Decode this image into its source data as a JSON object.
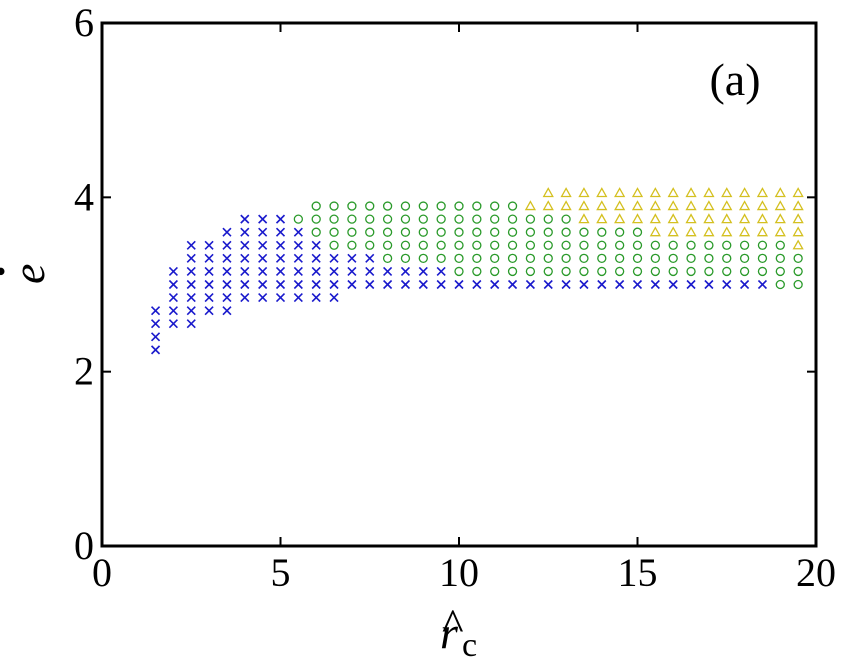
{
  "chart_data": {
    "type": "scatter",
    "panel_label": "(a)",
    "xlabel": {
      "main": "r",
      "hat": "^",
      "sub": "c"
    },
    "ylabel": {
      "main": "e",
      "dot": "·"
    },
    "xlim": [
      0,
      20
    ],
    "ylim": [
      0,
      6
    ],
    "xticks": [
      "0",
      "5",
      "10",
      "15",
      "20"
    ],
    "yticks": [
      "0",
      "2",
      "4",
      "6"
    ],
    "grid": false,
    "colors": {
      "x": "#1a1acc",
      "circle": "#2a9a2a",
      "triangle": "#d4c020"
    },
    "series": [
      {
        "marker": "x",
        "columns": [
          {
            "x": 1.5,
            "ymin": 2.25,
            "ymax": 2.7
          },
          {
            "x": 2.0,
            "ymin": 2.55,
            "ymax": 3.15
          },
          {
            "x": 2.5,
            "ymin": 2.55,
            "ymax": 3.45
          },
          {
            "x": 3.0,
            "ymin": 2.7,
            "ymax": 3.45
          },
          {
            "x": 3.5,
            "ymin": 2.7,
            "ymax": 3.6
          },
          {
            "x": 4.0,
            "ymin": 2.85,
            "ymax": 3.75
          },
          {
            "x": 4.5,
            "ymin": 2.85,
            "ymax": 3.75
          },
          {
            "x": 5.0,
            "ymin": 2.85,
            "ymax": 3.75
          },
          {
            "x": 5.5,
            "ymin": 2.85,
            "ymax": 3.6
          },
          {
            "x": 6.0,
            "ymin": 2.85,
            "ymax": 3.45
          },
          {
            "x": 6.5,
            "ymin": 2.85,
            "ymax": 3.3
          },
          {
            "x": 7.0,
            "ymin": 3.0,
            "ymax": 3.3
          },
          {
            "x": 7.5,
            "ymin": 3.0,
            "ymax": 3.3
          },
          {
            "x": 8.0,
            "ymin": 3.0,
            "ymax": 3.15
          },
          {
            "x": 8.5,
            "ymin": 3.0,
            "ymax": 3.15
          },
          {
            "x": 9.0,
            "ymin": 3.0,
            "ymax": 3.15
          },
          {
            "x": 9.5,
            "ymin": 3.0,
            "ymax": 3.15
          },
          {
            "x": 10.0,
            "ymin": 3.0,
            "ymax": 3.0
          },
          {
            "x": 10.5,
            "ymin": 3.0,
            "ymax": 3.0
          },
          {
            "x": 11.0,
            "ymin": 3.0,
            "ymax": 3.0
          },
          {
            "x": 11.5,
            "ymin": 3.0,
            "ymax": 3.0
          },
          {
            "x": 12.0,
            "ymin": 3.0,
            "ymax": 3.0
          },
          {
            "x": 12.5,
            "ymin": 3.0,
            "ymax": 3.0
          },
          {
            "x": 13.0,
            "ymin": 3.0,
            "ymax": 3.0
          },
          {
            "x": 13.5,
            "ymin": 3.0,
            "ymax": 3.0
          },
          {
            "x": 14.0,
            "ymin": 3.0,
            "ymax": 3.0
          },
          {
            "x": 14.5,
            "ymin": 3.0,
            "ymax": 3.0
          },
          {
            "x": 15.0,
            "ymin": 3.0,
            "ymax": 3.0
          },
          {
            "x": 15.5,
            "ymin": 3.0,
            "ymax": 3.0
          },
          {
            "x": 16.0,
            "ymin": 3.0,
            "ymax": 3.0
          },
          {
            "x": 16.5,
            "ymin": 3.0,
            "ymax": 3.0
          },
          {
            "x": 17.0,
            "ymin": 3.0,
            "ymax": 3.0
          },
          {
            "x": 17.5,
            "ymin": 3.0,
            "ymax": 3.0
          },
          {
            "x": 18.0,
            "ymin": 3.0,
            "ymax": 3.0
          },
          {
            "x": 18.5,
            "ymin": 3.0,
            "ymax": 3.0
          }
        ]
      },
      {
        "marker": "circle",
        "columns": [
          {
            "x": 5.5,
            "ymin": 3.75,
            "ymax": 3.75
          },
          {
            "x": 6.0,
            "ymin": 3.6,
            "ymax": 3.9
          },
          {
            "x": 6.5,
            "ymin": 3.45,
            "ymax": 3.9
          },
          {
            "x": 7.0,
            "ymin": 3.45,
            "ymax": 3.9
          },
          {
            "x": 7.5,
            "ymin": 3.45,
            "ymax": 3.9
          },
          {
            "x": 8.0,
            "ymin": 3.3,
            "ymax": 3.9
          },
          {
            "x": 8.5,
            "ymin": 3.3,
            "ymax": 3.9
          },
          {
            "x": 9.0,
            "ymin": 3.3,
            "ymax": 3.9
          },
          {
            "x": 9.5,
            "ymin": 3.3,
            "ymax": 3.9
          },
          {
            "x": 10.0,
            "ymin": 3.15,
            "ymax": 3.9
          },
          {
            "x": 10.5,
            "ymin": 3.15,
            "ymax": 3.9
          },
          {
            "x": 11.0,
            "ymin": 3.15,
            "ymax": 3.9
          },
          {
            "x": 11.5,
            "ymin": 3.15,
            "ymax": 3.9
          },
          {
            "x": 12.0,
            "ymin": 3.15,
            "ymax": 3.75
          },
          {
            "x": 12.5,
            "ymin": 3.15,
            "ymax": 3.75
          },
          {
            "x": 13.0,
            "ymin": 3.15,
            "ymax": 3.75
          },
          {
            "x": 13.5,
            "ymin": 3.15,
            "ymax": 3.6
          },
          {
            "x": 14.0,
            "ymin": 3.15,
            "ymax": 3.6
          },
          {
            "x": 14.5,
            "ymin": 3.15,
            "ymax": 3.6
          },
          {
            "x": 15.0,
            "ymin": 3.15,
            "ymax": 3.6
          },
          {
            "x": 15.5,
            "ymin": 3.15,
            "ymax": 3.45
          },
          {
            "x": 16.0,
            "ymin": 3.15,
            "ymax": 3.45
          },
          {
            "x": 16.5,
            "ymin": 3.15,
            "ymax": 3.45
          },
          {
            "x": 17.0,
            "ymin": 3.15,
            "ymax": 3.45
          },
          {
            "x": 17.5,
            "ymin": 3.15,
            "ymax": 3.45
          },
          {
            "x": 18.0,
            "ymin": 3.15,
            "ymax": 3.45
          },
          {
            "x": 18.5,
            "ymin": 3.15,
            "ymax": 3.45
          },
          {
            "x": 19.0,
            "ymin": 3.0,
            "ymax": 3.45
          },
          {
            "x": 19.5,
            "ymin": 3.0,
            "ymax": 3.3
          }
        ]
      },
      {
        "marker": "triangle",
        "columns": [
          {
            "x": 12.0,
            "ymin": 3.9,
            "ymax": 3.9
          },
          {
            "x": 12.5,
            "ymin": 3.9,
            "ymax": 4.05
          },
          {
            "x": 13.0,
            "ymin": 3.9,
            "ymax": 4.05
          },
          {
            "x": 13.5,
            "ymin": 3.75,
            "ymax": 4.05
          },
          {
            "x": 14.0,
            "ymin": 3.75,
            "ymax": 4.05
          },
          {
            "x": 14.5,
            "ymin": 3.75,
            "ymax": 4.05
          },
          {
            "x": 15.0,
            "ymin": 3.75,
            "ymax": 4.05
          },
          {
            "x": 15.5,
            "ymin": 3.6,
            "ymax": 4.05
          },
          {
            "x": 16.0,
            "ymin": 3.6,
            "ymax": 4.05
          },
          {
            "x": 16.5,
            "ymin": 3.6,
            "ymax": 4.05
          },
          {
            "x": 17.0,
            "ymin": 3.6,
            "ymax": 4.05
          },
          {
            "x": 17.5,
            "ymin": 3.6,
            "ymax": 4.05
          },
          {
            "x": 18.0,
            "ymin": 3.6,
            "ymax": 4.05
          },
          {
            "x": 18.5,
            "ymin": 3.6,
            "ymax": 4.05
          },
          {
            "x": 19.0,
            "ymin": 3.6,
            "ymax": 4.05
          },
          {
            "x": 19.5,
            "ymin": 3.45,
            "ymax": 4.05
          }
        ]
      }
    ],
    "y_step": 0.15
  }
}
